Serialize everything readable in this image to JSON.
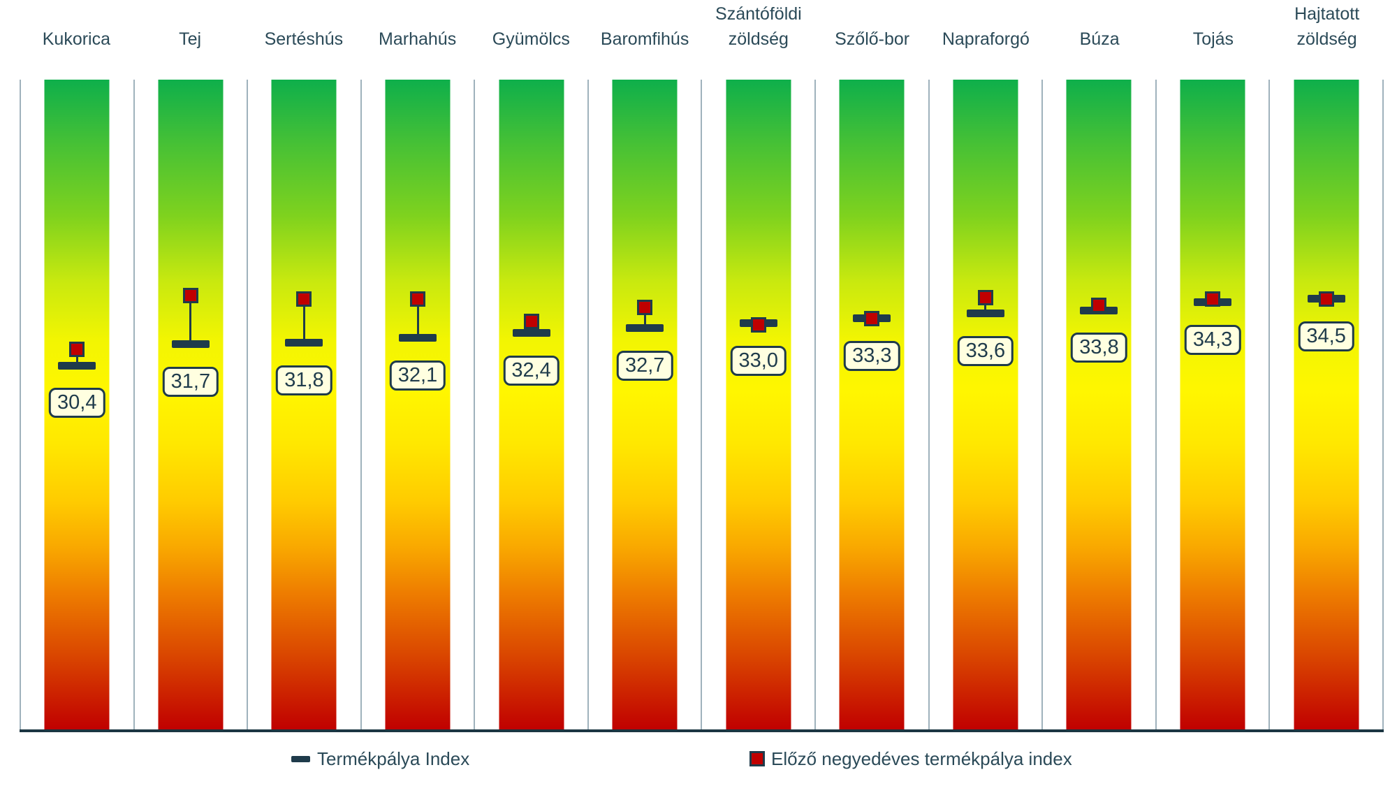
{
  "chart_data": {
    "type": "bar",
    "subtype": "gradient-scale-columns-with-markers",
    "title": "",
    "categories": [
      "Kukorica",
      "Tej",
      "Sertéshús",
      "Marhahús",
      "Gyümölcs",
      "Baromfihús",
      "Szántóföldi\nzöldség",
      "Szőlő-bor",
      "Napraforgó",
      "Búza",
      "Tojás",
      "Hajtatott\nzöldség"
    ],
    "series": [
      {
        "name": "Termékpálya Index",
        "marker": "dash",
        "values": [
          30.4,
          31.7,
          31.8,
          32.1,
          32.4,
          32.7,
          33.0,
          33.3,
          33.6,
          33.8,
          34.3,
          34.5
        ]
      },
      {
        "name": "Előző negyedéves termékpálya index",
        "marker": "red-square",
        "values_estimated": [
          31.4,
          34.7,
          34.5,
          34.5,
          33.1,
          34.0,
          32.9,
          33.3,
          34.6,
          34.1,
          34.5,
          34.5
        ]
      }
    ],
    "value_labels": [
      "30,4",
      "31,7",
      "31,8",
      "32,1",
      "32,4",
      "32,7",
      "33,0",
      "33,3",
      "33,6",
      "33,8",
      "34,3",
      "34,5"
    ],
    "ylim": [
      8,
      48
    ],
    "grid": "vertical-category-separators",
    "legend_position": "bottom",
    "bar_gradient_top_to_bottom": [
      "#0EAF4B",
      "#7FD21E",
      "#C8E90F",
      "#F7F500",
      "#FFE800",
      "#FFCB00",
      "#EE7D00",
      "#C00000"
    ]
  },
  "legend": {
    "items": [
      {
        "label": "Termékpálya Index",
        "icon": "dash-marker-icon",
        "color": "#1F3B4B"
      },
      {
        "label": "Előző negyedéves termékpálya index",
        "icon": "red-square-marker-icon",
        "color": "#C00000"
      }
    ]
  },
  "colors": {
    "marker_navy": "#1F3B4B",
    "marker_red": "#C00000",
    "value_box_fill": "#FFFFE0",
    "label_text": "#2B4A58",
    "separator_line": "#9FB2BC",
    "axis_line": "#1B3642"
  }
}
